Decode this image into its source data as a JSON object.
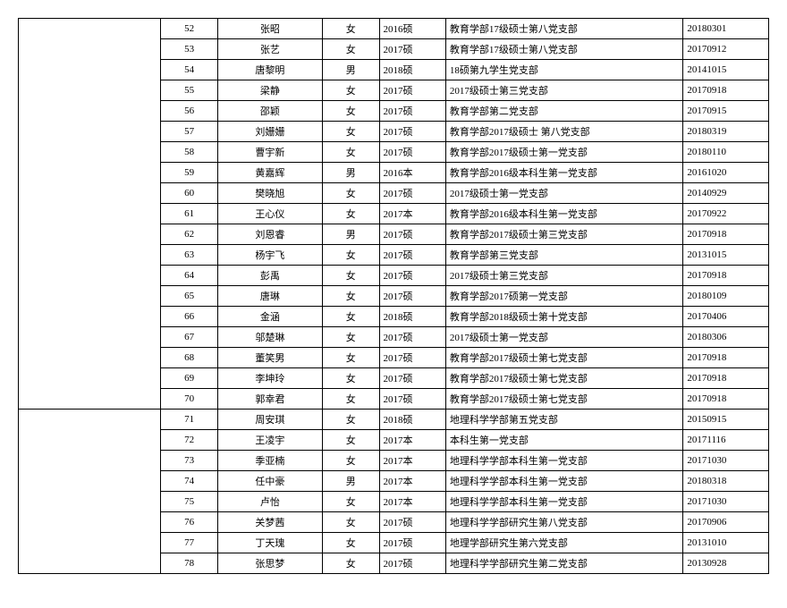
{
  "table": {
    "groups": [
      {
        "rows": [
          {
            "num": "52",
            "name": "张昭",
            "gender": "女",
            "grade": "2016硕",
            "branch": "教育学部17级硕士第八党支部",
            "date": "20180301"
          },
          {
            "num": "53",
            "name": "张艺",
            "gender": "女",
            "grade": "2017硕",
            "branch": "教育学部17级硕士第八党支部",
            "date": "20170912"
          },
          {
            "num": "54",
            "name": "唐黎明",
            "gender": "男",
            "grade": "2018硕",
            "branch": "18硕第九学生党支部",
            "date": "20141015"
          },
          {
            "num": "55",
            "name": "梁静",
            "gender": "女",
            "grade": "2017硕",
            "branch": "2017级硕士第三党支部",
            "date": "20170918"
          },
          {
            "num": "56",
            "name": "邵颖",
            "gender": "女",
            "grade": "2017硕",
            "branch": "教育学部第二党支部",
            "date": "20170915"
          },
          {
            "num": "57",
            "name": "刘姗姗",
            "gender": "女",
            "grade": "2017硕",
            "branch": "教育学部2017级硕士 第八党支部",
            "date": "20180319"
          },
          {
            "num": "58",
            "name": "曹宇新",
            "gender": "女",
            "grade": "2017硕",
            "branch": "教育学部2017级硕士第一党支部",
            "date": "20180110"
          },
          {
            "num": "59",
            "name": "黄嘉辉",
            "gender": "男",
            "grade": "2016本",
            "branch": "教育学部2016级本科生第一党支部",
            "date": "20161020"
          },
          {
            "num": "60",
            "name": "樊晓旭",
            "gender": "女",
            "grade": "2017硕",
            "branch": "2017级硕士第一党支部",
            "date": "20140929"
          },
          {
            "num": "61",
            "name": "王心仪",
            "gender": "女",
            "grade": "2017本",
            "branch": "教育学部2016级本科生第一党支部",
            "date": "20170922"
          },
          {
            "num": "62",
            "name": "刘恩睿",
            "gender": "男",
            "grade": "2017硕",
            "branch": "教育学部2017级硕士第三党支部",
            "date": "20170918"
          },
          {
            "num": "63",
            "name": "杨宇飞",
            "gender": "女",
            "grade": "2017硕",
            "branch": "教育学部第三党支部",
            "date": "20131015"
          },
          {
            "num": "64",
            "name": "彭禹",
            "gender": "女",
            "grade": "2017硕",
            "branch": "2017级硕士第三党支部",
            "date": "20170918"
          },
          {
            "num": "65",
            "name": "唐琳",
            "gender": "女",
            "grade": "2017硕",
            "branch": "教育学部2017硕第一党支部",
            "date": "20180109"
          },
          {
            "num": "66",
            "name": "金涵",
            "gender": "女",
            "grade": "2018硕",
            "branch": "教育学部2018级硕士第十党支部",
            "date": "20170406"
          },
          {
            "num": "67",
            "name": "邬楚琳",
            "gender": "女",
            "grade": "2017硕",
            "branch": "2017级硕士第一党支部",
            "date": "20180306"
          },
          {
            "num": "68",
            "name": "董笑男",
            "gender": "女",
            "grade": "2017硕",
            "branch": "教育学部2017级硕士第七党支部",
            "date": "20170918"
          },
          {
            "num": "69",
            "name": "李坤玲",
            "gender": "女",
            "grade": "2017硕",
            "branch": "教育学部2017级硕士第七党支部",
            "date": "20170918"
          },
          {
            "num": "70",
            "name": "郭幸君",
            "gender": "女",
            "grade": "2017硕",
            "branch": "教育学部2017级硕士第七党支部",
            "date": "20170918"
          }
        ]
      },
      {
        "rows": [
          {
            "num": "71",
            "name": "周安琪",
            "gender": "女",
            "grade": "2018硕",
            "branch": "地理科学学部第五党支部",
            "date": "20150915"
          },
          {
            "num": "72",
            "name": "王凌宇",
            "gender": "女",
            "grade": "2017本",
            "branch": "本科生第一党支部",
            "date": "20171116"
          },
          {
            "num": "73",
            "name": "季亚楠",
            "gender": "女",
            "grade": "2017本",
            "branch": "地理科学学部本科生第一党支部",
            "date": "20171030"
          },
          {
            "num": "74",
            "name": "任中豪",
            "gender": "男",
            "grade": "2017本",
            "branch": "地理科学学部本科生第一党支部",
            "date": "20180318"
          },
          {
            "num": "75",
            "name": "卢怡",
            "gender": "女",
            "grade": "2017本",
            "branch": "地理科学学部本科生第一党支部",
            "date": "20171030"
          },
          {
            "num": "76",
            "name": "关梦茜",
            "gender": "女",
            "grade": "2017硕",
            "branch": "地理科学学部研究生第八党支部",
            "date": "20170906"
          },
          {
            "num": "77",
            "name": "丁天瑰",
            "gender": "女",
            "grade": "2017硕",
            "branch": "地理学部研究生第六党支部",
            "date": "20131010"
          },
          {
            "num": "78",
            "name": "张思梦",
            "gender": "女",
            "grade": "2017硕",
            "branch": "地理科学学部研究生第二党支部",
            "date": "20130928"
          }
        ]
      }
    ],
    "colClasses": [
      "col0",
      "col1",
      "col2",
      "col3",
      "col4",
      "col5",
      "col6"
    ]
  }
}
